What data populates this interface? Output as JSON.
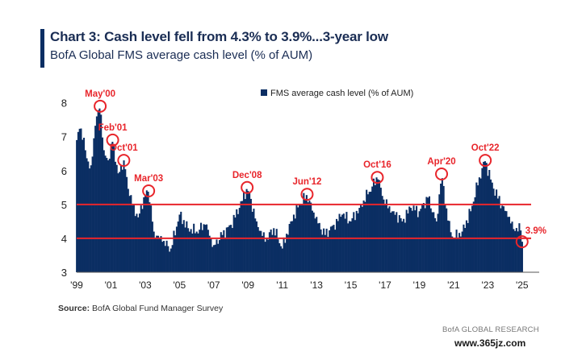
{
  "header": {
    "title": "Chart 3: Cash level fell from 4.3% to 3.9%...3-year low",
    "subtitle": "BofA Global FMS average cash level (% of AUM)"
  },
  "source": {
    "label": "Source:",
    "text": "BofA Global Fund Manager Survey"
  },
  "brand": "BofA GLOBAL RESEARCH",
  "watermark": "www.365jz.com",
  "colors": {
    "bars": "#0b2e63",
    "annotation": "#e8252b",
    "accent": "#0b2e63"
  },
  "chart_data": {
    "type": "bar",
    "legend": "FMS average cash level (% of AUM)",
    "legend_position": "top-right",
    "ylim": [
      3,
      8.3
    ],
    "yticks": [
      3,
      4,
      5,
      6,
      7,
      8
    ],
    "xlim": [
      1999.0,
      2026.0
    ],
    "xticks": [
      {
        "x": 1999,
        "label": "'99"
      },
      {
        "x": 2001,
        "label": "'01"
      },
      {
        "x": 2003,
        "label": "'03"
      },
      {
        "x": 2005,
        "label": "'05"
      },
      {
        "x": 2007,
        "label": "'07"
      },
      {
        "x": 2009,
        "label": "'09"
      },
      {
        "x": 2011,
        "label": "'11"
      },
      {
        "x": 2013,
        "label": "'13"
      },
      {
        "x": 2015,
        "label": "'15"
      },
      {
        "x": 2017,
        "label": "'17"
      },
      {
        "x": 2019,
        "label": "'19"
      },
      {
        "x": 2021,
        "label": "'21"
      },
      {
        "x": 2023,
        "label": "'23"
      },
      {
        "x": 2025,
        "label": "'25"
      }
    ],
    "reference_lines": [
      5.0,
      4.0
    ],
    "grid": false,
    "anchors": [
      [
        1999.0,
        6.9
      ],
      [
        1999.2,
        7.3
      ],
      [
        1999.5,
        6.6
      ],
      [
        1999.8,
        6.0
      ],
      [
        2000.1,
        7.4
      ],
      [
        2000.37,
        7.9
      ],
      [
        2000.6,
        6.5
      ],
      [
        2000.9,
        6.3
      ],
      [
        2001.1,
        6.9
      ],
      [
        2001.4,
        5.9
      ],
      [
        2001.75,
        6.3
      ],
      [
        2002.1,
        5.2
      ],
      [
        2002.6,
        4.6
      ],
      [
        2002.9,
        5.2
      ],
      [
        2003.2,
        5.4
      ],
      [
        2003.5,
        4.2
      ],
      [
        2004.0,
        3.9
      ],
      [
        2004.5,
        3.7
      ],
      [
        2005.0,
        4.7
      ],
      [
        2005.5,
        4.3
      ],
      [
        2006.0,
        4.2
      ],
      [
        2006.5,
        4.4
      ],
      [
        2007.0,
        3.8
      ],
      [
        2007.5,
        4.1
      ],
      [
        2008.0,
        4.4
      ],
      [
        2008.5,
        4.9
      ],
      [
        2008.95,
        5.5
      ],
      [
        2009.5,
        4.5
      ],
      [
        2010.0,
        3.9
      ],
      [
        2010.5,
        4.3
      ],
      [
        2011.0,
        3.7
      ],
      [
        2011.5,
        4.5
      ],
      [
        2012.0,
        5.0
      ],
      [
        2012.45,
        5.3
      ],
      [
        2012.9,
        4.6
      ],
      [
        2013.5,
        4.1
      ],
      [
        2014.0,
        4.4
      ],
      [
        2014.5,
        4.7
      ],
      [
        2015.0,
        4.5
      ],
      [
        2015.5,
        4.9
      ],
      [
        2016.0,
        5.3
      ],
      [
        2016.55,
        5.8
      ],
      [
        2017.0,
        5.0
      ],
      [
        2017.5,
        4.8
      ],
      [
        2018.0,
        4.5
      ],
      [
        2018.5,
        4.9
      ],
      [
        2019.0,
        4.8
      ],
      [
        2019.5,
        5.2
      ],
      [
        2020.0,
        4.5
      ],
      [
        2020.3,
        5.9
      ],
      [
        2020.7,
        4.4
      ],
      [
        2021.0,
        4.0
      ],
      [
        2021.5,
        4.2
      ],
      [
        2022.0,
        4.8
      ],
      [
        2022.5,
        5.8
      ],
      [
        2022.85,
        6.3
      ],
      [
        2023.3,
        5.5
      ],
      [
        2023.8,
        5.0
      ],
      [
        2024.2,
        4.6
      ],
      [
        2024.6,
        4.2
      ],
      [
        2024.9,
        4.3
      ],
      [
        2025.0,
        3.9
      ]
    ],
    "annotations": [
      {
        "label": "May'00",
        "x": 2000.37,
        "y": 7.9,
        "pos": "above"
      },
      {
        "label": "Feb'01",
        "x": 2001.1,
        "y": 6.9,
        "pos": "above"
      },
      {
        "label": "Oct'01",
        "x": 2001.75,
        "y": 6.3,
        "pos": "above"
      },
      {
        "label": "Mar'03",
        "x": 2003.2,
        "y": 5.4,
        "pos": "above"
      },
      {
        "label": "Dec'08",
        "x": 2008.95,
        "y": 5.5,
        "pos": "above"
      },
      {
        "label": "Jun'12",
        "x": 2012.45,
        "y": 5.3,
        "pos": "above"
      },
      {
        "label": "Oct'16",
        "x": 2016.55,
        "y": 5.8,
        "pos": "above"
      },
      {
        "label": "Apr'20",
        "x": 2020.3,
        "y": 5.9,
        "pos": "above"
      },
      {
        "label": "Oct'22",
        "x": 2022.85,
        "y": 6.3,
        "pos": "above"
      },
      {
        "label": "3.9%",
        "x": 2025.0,
        "y": 3.9,
        "pos": "right"
      }
    ]
  }
}
